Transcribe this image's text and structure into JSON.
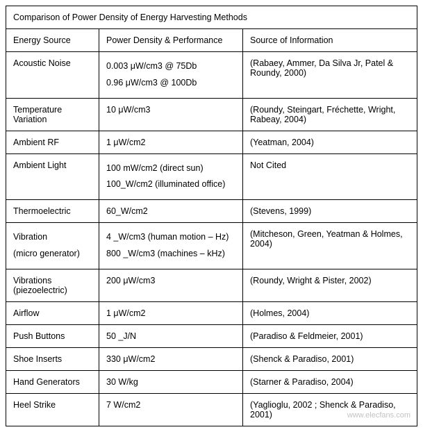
{
  "title": "Comparison of Power Density of Energy Harvesting Methods",
  "headers": {
    "col1": "Energy Source",
    "col2": "Power Density & Performance",
    "col3": "Source of Information"
  },
  "rows": [
    {
      "source": "Acoustic Noise",
      "source_sub": "",
      "density1": "0.003 μW/cm3 @ 75Db",
      "density2": "0.96 μW/cm3 @ 100Db",
      "info": "(Rabaey, Ammer, Da Silva Jr, Patel & Roundy, 2000)"
    },
    {
      "source": "Temperature Variation",
      "source_sub": "",
      "density1": "10 μW/cm3",
      "density2": "",
      "info": "(Roundy, Steingart, Fréchette, Wright, Rabeay, 2004)"
    },
    {
      "source": "Ambient RF",
      "source_sub": "",
      "density1": "1 μW/cm2",
      "density2": "",
      "info": "(Yeatman, 2004)"
    },
    {
      "source": "Ambient Light",
      "source_sub": "",
      "density1": "100 mW/cm2 (direct sun)",
      "density2": "100_W/cm2 (illuminated office)",
      "info": "Not Cited"
    },
    {
      "source": "Thermoelectric",
      "source_sub": "",
      "density1": "60_W/cm2",
      "density2": "",
      "info": "(Stevens, 1999)"
    },
    {
      "source": "Vibration",
      "source_sub": "(micro generator)",
      "density1": "4 _W/cm3 (human motion – Hz)",
      "density2": "800 _W/cm3 (machines – kHz)",
      "info": "(Mitcheson, Green, Yeatman & Holmes, 2004)"
    },
    {
      "source": "Vibrations (piezoelectric)",
      "source_sub": "",
      "density1": "200 μW/cm3",
      "density2": "",
      "info": "(Roundy, Wright & Pister, 2002)"
    },
    {
      "source": "Airflow",
      "source_sub": "",
      "density1": "1 μW/cm2",
      "density2": "",
      "info": "(Holmes, 2004)"
    },
    {
      "source": "Push Buttons",
      "source_sub": "",
      "density1": "50 _J/N",
      "density2": "",
      "info": "(Paradiso & Feldmeier, 2001)"
    },
    {
      "source": "Shoe Inserts",
      "source_sub": "",
      "density1": "330 μW/cm2",
      "density2": "",
      "info": "(Shenck & Paradiso, 2001)"
    },
    {
      "source": "Hand Generators",
      "source_sub": "",
      "density1": "30 W/kg",
      "density2": "",
      "info": "(Starner & Paradiso, 2004)"
    },
    {
      "source": "Heel Strike",
      "source_sub": "",
      "density1": "7 W/cm2",
      "density2": "",
      "info": "(Yaglioglu, 2002 ; Shenck & Paradiso, 2001)"
    }
  ],
  "watermark": "www.elecfans.com"
}
